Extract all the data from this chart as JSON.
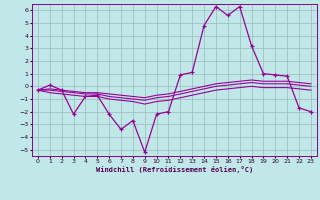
{
  "xlabel": "Windchill (Refroidissement éolien,°C)",
  "bg_color": "#c0e8e8",
  "line_color": "#990099",
  "grid_color": "#99bbbb",
  "xlim": [
    -0.5,
    23.5
  ],
  "ylim": [
    -5.5,
    6.5
  ],
  "xticks": [
    0,
    1,
    2,
    3,
    4,
    5,
    6,
    7,
    8,
    9,
    10,
    11,
    12,
    13,
    14,
    15,
    16,
    17,
    18,
    19,
    20,
    21,
    22,
    23
  ],
  "yticks": [
    -5,
    -4,
    -3,
    -2,
    -1,
    0,
    1,
    2,
    3,
    4,
    5,
    6
  ],
  "hours": [
    0,
    1,
    2,
    3,
    4,
    5,
    6,
    7,
    8,
    9,
    10,
    11,
    12,
    13,
    14,
    15,
    16,
    17,
    18,
    19,
    20,
    21,
    22,
    23
  ],
  "temp_line": [
    -0.3,
    0.1,
    -0.3,
    -2.2,
    -0.8,
    -0.7,
    -2.2,
    -3.4,
    -2.7,
    -5.2,
    -2.2,
    -2.0,
    0.9,
    1.1,
    4.8,
    6.3,
    5.6,
    6.3,
    3.2,
    1.0,
    0.9,
    0.8,
    -1.7,
    -2.0
  ],
  "wind_line1": [
    -0.3,
    -0.2,
    -0.3,
    -0.4,
    -0.5,
    -0.5,
    -0.6,
    -0.7,
    -0.8,
    -0.9,
    -0.7,
    -0.6,
    -0.4,
    -0.2,
    0.0,
    0.2,
    0.3,
    0.4,
    0.5,
    0.4,
    0.4,
    0.4,
    0.3,
    0.2
  ],
  "wind_line2": [
    -0.3,
    -0.3,
    -0.4,
    -0.5,
    -0.6,
    -0.6,
    -0.8,
    -0.9,
    -1.0,
    -1.1,
    -0.9,
    -0.8,
    -0.6,
    -0.4,
    -0.2,
    0.0,
    0.1,
    0.2,
    0.3,
    0.2,
    0.2,
    0.2,
    0.1,
    0.0
  ],
  "wind_line3": [
    -0.3,
    -0.5,
    -0.6,
    -0.7,
    -0.8,
    -0.8,
    -1.0,
    -1.1,
    -1.2,
    -1.4,
    -1.2,
    -1.1,
    -0.9,
    -0.7,
    -0.5,
    -0.3,
    -0.2,
    -0.1,
    0.0,
    -0.1,
    -0.1,
    -0.1,
    -0.2,
    -0.3
  ]
}
